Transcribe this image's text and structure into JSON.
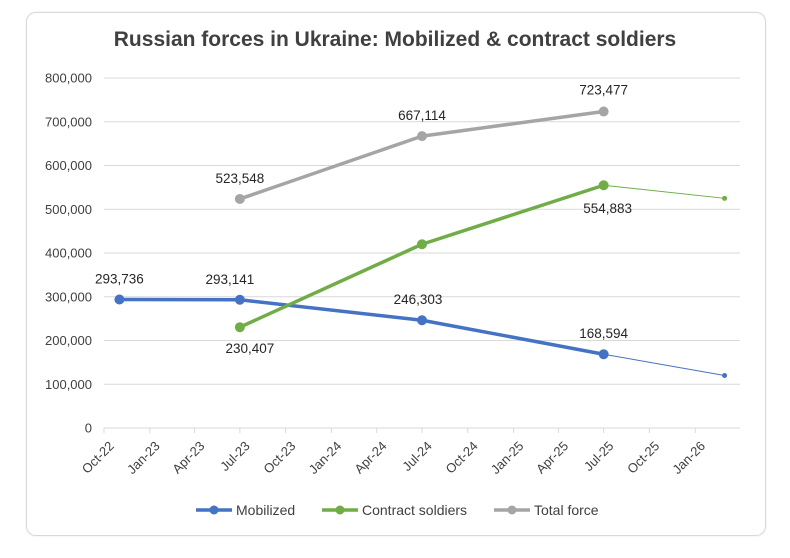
{
  "chart_data": {
    "type": "line",
    "title": "Russian forces in Ukraine: Mobilized & contract soldiers",
    "xlabel": "",
    "ylabel": "",
    "x_ticks": [
      "Oct-22",
      "Jan-23",
      "Apr-23",
      "Jul-23",
      "Oct-23",
      "Jan-24",
      "Apr-24",
      "Jul-24",
      "Oct-24",
      "Jan-25",
      "Apr-25",
      "Jul-25",
      "Oct-25",
      "Jan-26"
    ],
    "y_ticks": [
      "0",
      "100,000",
      "200,000",
      "300,000",
      "400,000",
      "500,000",
      "600,000",
      "700,000",
      "800,000"
    ],
    "ylim": [
      0,
      800000
    ],
    "xlim": [
      "2022-10-01",
      "2026-04-01"
    ],
    "grid": "horizontal",
    "legend_position": "bottom",
    "series": [
      {
        "name": "Mobilized",
        "color": "#4472c4",
        "points": [
          {
            "x": "2022-11-01",
            "y": 293736,
            "label": "293,736"
          },
          {
            "x": "2023-07-01",
            "y": 293141,
            "label": "293,141"
          },
          {
            "x": "2024-07-01",
            "y": 246303,
            "label": "246,303"
          },
          {
            "x": "2025-07-01",
            "y": 168594,
            "label": "168,594"
          }
        ],
        "trend_to": {
          "x": "2026-03-01",
          "y": 120000
        }
      },
      {
        "name": "Contract soldiers",
        "color": "#70ad47",
        "points": [
          {
            "x": "2023-07-01",
            "y": 230407,
            "label": "230,407"
          },
          {
            "x": "2024-07-01",
            "y": 420000,
            "label": ""
          },
          {
            "x": "2025-07-01",
            "y": 554883,
            "label": "554,883"
          }
        ],
        "trend_to": {
          "x": "2026-03-01",
          "y": 525000
        }
      },
      {
        "name": "Total force",
        "color": "#a5a5a5",
        "points": [
          {
            "x": "2023-07-01",
            "y": 523548,
            "label": "523,548"
          },
          {
            "x": "2024-07-01",
            "y": 667114,
            "label": "667,114"
          },
          {
            "x": "2025-07-01",
            "y": 723477,
            "label": "723,477"
          }
        ]
      }
    ]
  }
}
